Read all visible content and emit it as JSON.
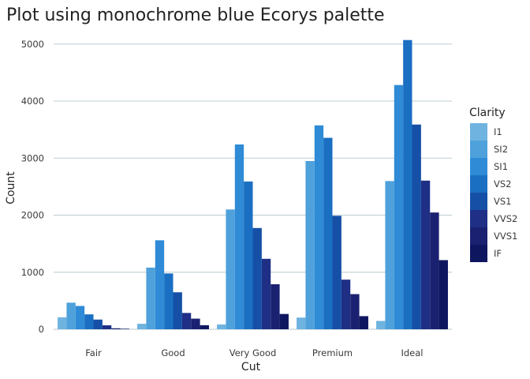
{
  "chart_data": {
    "type": "bar",
    "title": "Plot using monochrome blue Ecorys palette",
    "xlabel": "Cut",
    "ylabel": "Count",
    "categories": [
      "Fair",
      "Good",
      "Very Good",
      "Premium",
      "Ideal"
    ],
    "ylim": [
      0,
      5150
    ],
    "yticks": [
      0,
      1000,
      2000,
      3000,
      4000,
      5000
    ],
    "grid": "horizontal",
    "legend": {
      "title": "Clarity",
      "position": "right"
    },
    "series": [
      {
        "name": "I1",
        "color": "#6fb3e0",
        "values": [
          210,
          96,
          84,
          205,
          146
        ]
      },
      {
        "name": "SI2",
        "color": "#4ea1db",
        "values": [
          466,
          1081,
          2100,
          2949,
          2598
        ]
      },
      {
        "name": "SI1",
        "color": "#2f8bd6",
        "values": [
          408,
          1560,
          3240,
          3575,
          4282
        ]
      },
      {
        "name": "VS2",
        "color": "#1b6fc2",
        "values": [
          261,
          978,
          2591,
          3357,
          5071
        ]
      },
      {
        "name": "VS1",
        "color": "#1550a6",
        "values": [
          170,
          648,
          1775,
          1989,
          3589
        ]
      },
      {
        "name": "VVS2",
        "color": "#1e2f85",
        "values": [
          69,
          286,
          1235,
          870,
          2606
        ]
      },
      {
        "name": "VVS1",
        "color": "#1a2170",
        "values": [
          17,
          186,
          789,
          616,
          2047
        ]
      },
      {
        "name": "IF",
        "color": "#0f1660",
        "values": [
          9,
          71,
          268,
          230,
          1212
        ]
      }
    ]
  },
  "colors": {
    "grid": "#c5d4d8",
    "background": "#ffffff"
  }
}
